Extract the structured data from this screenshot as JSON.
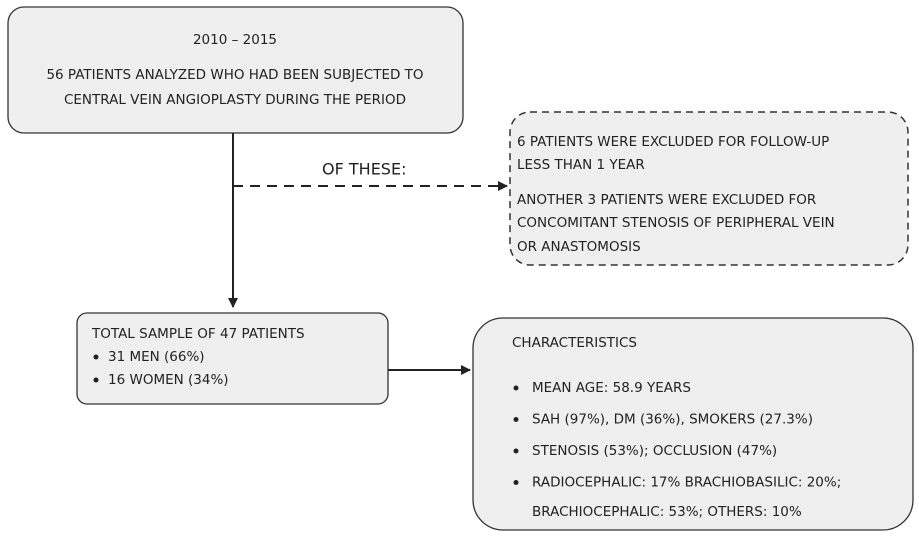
{
  "top_box": {
    "period": "2010 – 2015",
    "lines": [
      "56 PATIENTS ANALYZED WHO HAD BEEN SUBJECTED TO",
      "CENTRAL VEIN ANGIOPLASTY DURING THE PERIOD"
    ]
  },
  "connector_label": "OF THESE:",
  "exclusion_box": {
    "lines": [
      "6 PATIENTS WERE EXCLUDED FOR FOLLOW-UP",
      "LESS THAN 1 YEAR",
      "ANOTHER 3 PATIENTS WERE EXCLUDED FOR",
      "CONCOMITANT STENOSIS OF PERIPHERAL VEIN",
      "OR ANASTOMOSIS"
    ]
  },
  "sample_box": {
    "title": "TOTAL SAMPLE OF 47 PATIENTS",
    "items": [
      "31 MEN (66%)",
      "16 WOMEN (34%)"
    ]
  },
  "characteristics_box": {
    "title": "CHARACTERISTICS",
    "items": [
      "MEAN AGE: 58.9 YEARS",
      "SAH (97%), DM (36%), SMOKERS (27.3%)",
      "STENOSIS (53%); OCCLUSION (47%)",
      "RADIOCEPHALIC: 17% BRACHIOBASILIC: 20%;"
    ],
    "continuation": "BRACHIOCEPHALIC: 53%; OTHERS: 10%"
  }
}
